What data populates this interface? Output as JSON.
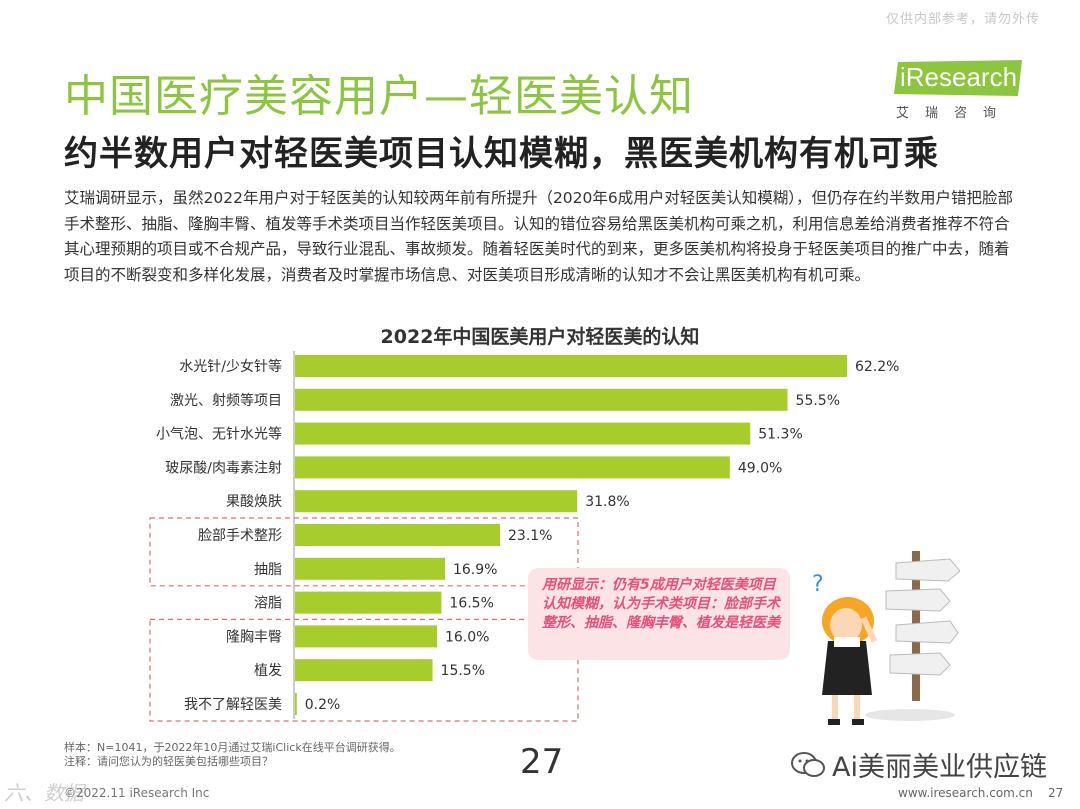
{
  "watermark": "仅供内部参考，请勿外传",
  "header": {
    "title": "中国医疗美容用户—轻医美认知",
    "subtitle": "约半数用户对轻医美项目认知模糊，黑医美机构有机可乘"
  },
  "logo": {
    "brand": "iResearch",
    "cn": "艾瑞咨询"
  },
  "body_text": "艾瑞调研显示，虽然2022年用户对于轻医美的认知较两年前有所提升（2020年6成用户对轻医美认知模糊），但仍存在约半数用户错把脸部手术整形、抽脂、隆胸丰臀、植发等手术类项目当作轻医美项目。认知的错位容易给黑医美机构可乘之机，利用信息差给消费者推荐不符合其心理预期的项目或不合规产品，导致行业混乱、事故频发。随着轻医美时代的到来，更多医美机构将投身于轻医美项目的推广中去，随着项目的不断裂变和多样化发展，消费者及时掌握市场信息、对医美项目形成清晰的认知才不会让黑医美机构有机可乘。",
  "chart_data": {
    "type": "bar",
    "orientation": "horizontal",
    "title": "2022年中国医美用户对轻医美的认知",
    "categories": [
      "水光针/少女针等",
      "激光、射频等项目",
      "小气泡、无针水光等",
      "玻尿酸/肉毒素注射",
      "果酸焕肤",
      "脸部手术整形",
      "抽脂",
      "溶脂",
      "隆胸丰臀",
      "植发",
      "我不了解轻医美"
    ],
    "values": [
      62.2,
      55.5,
      51.3,
      49.0,
      31.8,
      23.1,
      16.9,
      16.5,
      16.0,
      15.5,
      0.2
    ],
    "value_labels": [
      "62.2%",
      "55.5%",
      "51.3%",
      "49.0%",
      "31.8%",
      "23.1%",
      "16.9%",
      "16.5%",
      "16.0%",
      "15.5%",
      "0.2%"
    ],
    "xlim": [
      0,
      62.2
    ],
    "bar_color": "#a7cd2d",
    "highlight_groups": [
      [
        5,
        6
      ],
      [
        8,
        9,
        10
      ]
    ],
    "highlight_color": "#e06e6e"
  },
  "callout": "用研显示：仍有5成用户对轻医美项目认知模糊，认为手术类项目：脸部手术整形、抽脂、隆胸丰臀、植发是轻医美",
  "footnote": {
    "sample": "样本：N=1041，于2022年10月通过艾瑞iClick在线平台调研获得。",
    "note": "注释：请问您认为的轻医美包括哪些项目？"
  },
  "page_number_large": "27",
  "wechat_label": "Ai美丽美业供应链",
  "bottom_left": "©2022.11 iResearch Inc",
  "bottom_watermark": "六、数据",
  "bottom_url": "www.iresearch.com.cn",
  "bottom_page": "27",
  "colors": {
    "title_green": "#8cc63f",
    "logo_green": "#8cc63f",
    "callout_bg": "#fbe3e6",
    "callout_text": "#e8507a"
  }
}
